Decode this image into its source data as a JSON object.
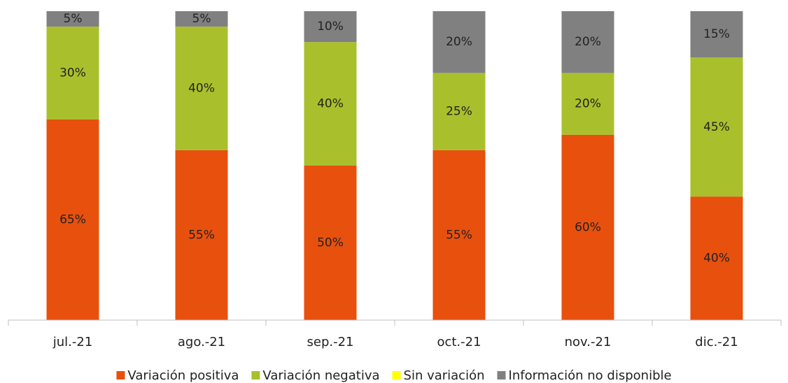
{
  "chart_data": {
    "type": "stacked_bar",
    "categories": [
      "jul.-21",
      "ago.-21",
      "sep.-21",
      "oct.-21",
      "nov.-21",
      "dic.-21"
    ],
    "ylim": [
      0,
      100
    ],
    "series": [
      {
        "name": "Variación positiva",
        "color": "#e8500e",
        "values": [
          65,
          55,
          50,
          55,
          60,
          40
        ],
        "value_labels": [
          "65%",
          "55%",
          "50%",
          "55%",
          "60%",
          "40%"
        ]
      },
      {
        "name": "Variación negativa",
        "color": "#a9c02c",
        "values": [
          30,
          40,
          40,
          25,
          20,
          45
        ],
        "value_labels": [
          "30%",
          "40%",
          "40%",
          "25%",
          "20%",
          "45%"
        ]
      },
      {
        "name": "Sin variación",
        "color": "#ffff00",
        "values": [
          0,
          0,
          0,
          0,
          0,
          0
        ]
      },
      {
        "name": "Información no disponible",
        "color": "#808080",
        "values": [
          5,
          5,
          10,
          20,
          20,
          15
        ],
        "value_labels": [
          "5%",
          "5%",
          "10%",
          "20%",
          "20%",
          "15%"
        ]
      }
    ]
  }
}
